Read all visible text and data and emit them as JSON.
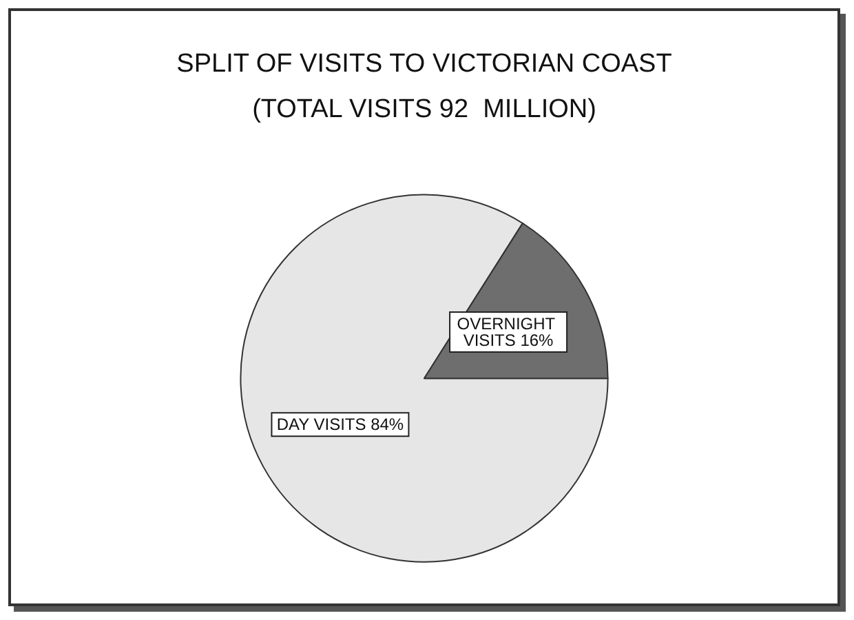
{
  "chart_data": {
    "type": "pie",
    "title": "SPLIT OF VISITS TO VICTORIAN COAST",
    "subtitle": "(TOTAL VISITS 92  MILLION)",
    "categories": [
      "DAY VISITS",
      "OVERNIGHT VISITS"
    ],
    "values": [
      84,
      16
    ],
    "colors": [
      "#e6e6e6",
      "#6e6e6e"
    ],
    "value_labels": [
      "84%",
      "16%"
    ],
    "legend": false
  }
}
